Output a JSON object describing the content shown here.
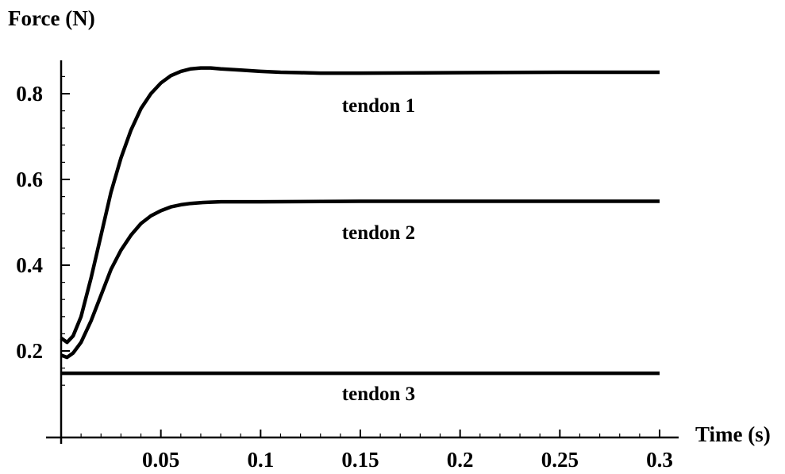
{
  "chart_data": {
    "type": "line",
    "ylabel": "Force (N)",
    "xlabel": "Time (s)",
    "xlim": [
      0,
      0.3
    ],
    "ylim": [
      0.1,
      0.85
    ],
    "x_ticks": [
      0.05,
      0.1,
      0.15,
      0.2,
      0.25,
      0.3
    ],
    "x_tick_labels": [
      "0.05",
      "0.1",
      "0.15",
      "0.2",
      "0.25",
      "0.3"
    ],
    "y_ticks": [
      0.2,
      0.4,
      0.6,
      0.8
    ],
    "y_tick_labels": [
      "0.2",
      "0.4",
      "0.6",
      "0.8"
    ],
    "grid": false,
    "legend": "none",
    "line_color": "#000000",
    "series": [
      {
        "name": "tendon 1",
        "x": [
          0,
          0.003,
          0.006,
          0.01,
          0.015,
          0.02,
          0.025,
          0.03,
          0.035,
          0.04,
          0.045,
          0.05,
          0.055,
          0.06,
          0.065,
          0.07,
          0.075,
          0.08,
          0.09,
          0.1,
          0.11,
          0.12,
          0.13,
          0.14,
          0.15,
          0.2,
          0.25,
          0.3
        ],
        "y": [
          0.23,
          0.22,
          0.235,
          0.28,
          0.37,
          0.47,
          0.57,
          0.65,
          0.715,
          0.765,
          0.8,
          0.825,
          0.842,
          0.852,
          0.858,
          0.86,
          0.86,
          0.858,
          0.855,
          0.852,
          0.85,
          0.849,
          0.848,
          0.848,
          0.848,
          0.849,
          0.85,
          0.85
        ]
      },
      {
        "name": "tendon 2",
        "x": [
          0,
          0.003,
          0.006,
          0.01,
          0.015,
          0.02,
          0.025,
          0.03,
          0.035,
          0.04,
          0.045,
          0.05,
          0.055,
          0.06,
          0.065,
          0.07,
          0.075,
          0.08,
          0.09,
          0.1,
          0.15,
          0.2,
          0.25,
          0.3
        ],
        "y": [
          0.19,
          0.185,
          0.195,
          0.22,
          0.27,
          0.33,
          0.39,
          0.435,
          0.47,
          0.497,
          0.515,
          0.527,
          0.536,
          0.541,
          0.544,
          0.546,
          0.547,
          0.548,
          0.548,
          0.548,
          0.549,
          0.549,
          0.549,
          0.549
        ]
      },
      {
        "name": "tendon 3",
        "x": [
          0,
          0.3
        ],
        "y": [
          0.148,
          0.148
        ]
      }
    ]
  }
}
